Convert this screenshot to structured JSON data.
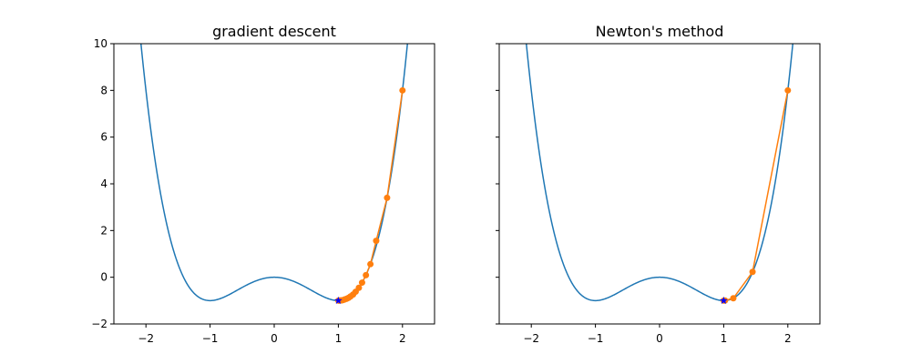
{
  "chart_data": [
    {
      "type": "line",
      "title": "gradient descent",
      "xlabel": "",
      "ylabel": "",
      "xlim": [
        -2.5,
        2.5
      ],
      "ylim": [
        -2,
        10
      ],
      "xticks": [
        -2,
        -1,
        0,
        1,
        2
      ],
      "yticks": [
        -2,
        0,
        2,
        4,
        6,
        8,
        10
      ],
      "xtick_labels": [
        "−2",
        "−1",
        "0",
        "1",
        "2"
      ],
      "ytick_labels": [
        "−2",
        "0",
        "2",
        "4",
        "6",
        "8",
        "10"
      ],
      "show_ytick_labels": true,
      "grid": false,
      "curve": {
        "function": "x^4 - 2x^2",
        "x_range": [
          -2.5,
          2.5
        ],
        "color": "#1f77b4"
      },
      "series": [
        {
          "color": "#ff7f0e",
          "marker": "circle",
          "x": [
            2.0,
            1.76,
            1.59,
            1.5,
            1.43,
            1.37,
            1.32,
            1.27,
            1.23,
            1.19,
            1.16,
            1.13,
            1.1,
            1.08,
            1.06,
            1.04,
            1.02,
            1.01,
            1.0
          ],
          "y": [
            8.0,
            3.4,
            1.56,
            0.56,
            0.09,
            -0.23,
            -0.45,
            -0.62,
            -0.74,
            -0.82,
            -0.88,
            -0.92,
            -0.95,
            -0.97,
            -0.985,
            -0.993,
            -0.998,
            -0.999,
            -1.0
          ]
        }
      ],
      "optimum": {
        "x": 1.0,
        "y": -1.0,
        "color": "#0000ff",
        "marker": "star"
      }
    },
    {
      "type": "line",
      "title": "Newton's method",
      "xlabel": "",
      "ylabel": "",
      "xlim": [
        -2.5,
        2.5
      ],
      "ylim": [
        -2,
        10
      ],
      "xticks": [
        -2,
        -1,
        0,
        1,
        2
      ],
      "yticks": [
        -2,
        0,
        2,
        4,
        6,
        8,
        10
      ],
      "xtick_labels": [
        "−2",
        "−1",
        "0",
        "1",
        "2"
      ],
      "ytick_labels": [],
      "show_ytick_labels": false,
      "grid": false,
      "curve": {
        "function": "x^4 - 2x^2",
        "x_range": [
          -2.5,
          2.5
        ],
        "color": "#1f77b4"
      },
      "series": [
        {
          "color": "#ff7f0e",
          "marker": "circle",
          "x": [
            2.0,
            1.45,
            1.15,
            1.02,
            1.0
          ],
          "y": [
            8.0,
            0.23,
            -0.9,
            -0.998,
            -1.0
          ]
        }
      ],
      "optimum": {
        "x": 1.0,
        "y": -1.0,
        "color": "#0000ff",
        "marker": "star"
      }
    }
  ]
}
